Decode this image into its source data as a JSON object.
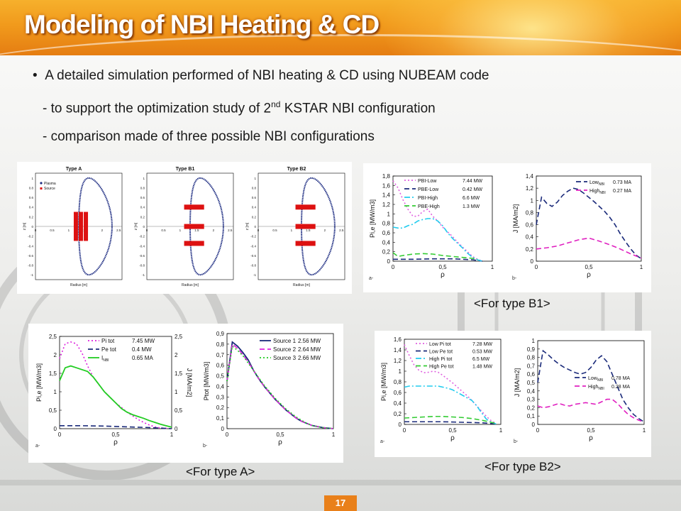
{
  "slide": {
    "title": "Modeling of NBI Heating & CD",
    "bullet": "A detailed simulation performed of NBI heating & CD using NUBEAM code",
    "sub1_pre": "- to support the optimization study of 2",
    "sub1_sup": "nd",
    "sub1_post": " KSTAR NBI configuration",
    "sub2": "- comparison made of three possible NBI configurations",
    "page_number": "17",
    "caption_b1": "<For type B1>",
    "caption_a": "<For type A>",
    "caption_b2": "<For type B2>"
  },
  "chart_data": [
    {
      "type": "scatter",
      "panels": [
        {
          "label": "Type A",
          "plasma_series": "Plasma",
          "source_series": "Source",
          "source_layout": "vertical"
        },
        {
          "label": "Type B1",
          "source_layout": "horizontal"
        },
        {
          "label": "Type B2",
          "source_layout": "horizontal"
        }
      ],
      "xlabel": "Radius [m]",
      "ylabel": "z [m]",
      "x_ticks": [
        "0",
        "0.5",
        "1",
        "1.5",
        "2",
        "2.5"
      ],
      "y_ticks": [
        "1",
        "0.8",
        "0.6",
        "0.4",
        "0.2",
        "0",
        "-0.2",
        "-0.4",
        "-0.6",
        "-0.8",
        "-1"
      ],
      "colors": {
        "plasma": "#1b2a80",
        "source": "#dd1111"
      }
    },
    {
      "type": "line",
      "caption": "<For type B1>",
      "a": {
        "panel_tag": "a-",
        "xlabel": "ρ",
        "ylabel": "Pi,e [MW/m3]",
        "ylim": [
          0,
          1.8
        ],
        "y_ticks": [
          "0",
          "0,2",
          "0,4",
          "0,6",
          "0,8",
          "1",
          "1,2",
          "1,4",
          "1,6",
          "1,8"
        ],
        "x_ticks": [
          "0",
          "0,5",
          "1"
        ],
        "series": [
          {
            "name": "PBI-Low",
            "value": "7.44 MW",
            "color": "#e060e0",
            "style": "dotted",
            "x": [
              0,
              0.05,
              0.1,
              0.15,
              0.2,
              0.25,
              0.3,
              0.35,
              0.4,
              0.45,
              0.5,
              0.55,
              0.6,
              0.65,
              0.7,
              0.75,
              0.8,
              0.85,
              0.9
            ],
            "y": [
              1.7,
              1.55,
              1.3,
              1.1,
              0.95,
              0.95,
              1.05,
              1.1,
              0.95,
              0.85,
              0.72,
              0.62,
              0.52,
              0.4,
              0.3,
              0.2,
              0.1,
              0.04,
              0
            ]
          },
          {
            "name": "PBE-Low",
            "value": "0.42 MW",
            "color": "#1a2a7a",
            "style": "dashed",
            "x": [
              0,
              0.2,
              0.4,
              0.6,
              0.8,
              0.9
            ],
            "y": [
              0.04,
              0.04,
              0.05,
              0.05,
              0.03,
              0
            ]
          },
          {
            "name": "PBI-High",
            "value": "6.6 MW",
            "color": "#22ccee",
            "style": "dashdot",
            "x": [
              0,
              0.05,
              0.1,
              0.15,
              0.2,
              0.25,
              0.3,
              0.35,
              0.4,
              0.45,
              0.5,
              0.55,
              0.6,
              0.65,
              0.7,
              0.75,
              0.8,
              0.85,
              0.9
            ],
            "y": [
              0.72,
              0.7,
              0.7,
              0.75,
              0.78,
              0.85,
              0.88,
              0.9,
              0.9,
              0.85,
              0.75,
              0.6,
              0.48,
              0.38,
              0.28,
              0.17,
              0.08,
              0.03,
              0
            ]
          },
          {
            "name": "PBE-High",
            "value": "1.3 MW",
            "color": "#33cc33",
            "style": "dashed",
            "x": [
              0,
              0.05,
              0.1,
              0.2,
              0.3,
              0.4,
              0.5,
              0.6,
              0.7,
              0.8,
              0.85
            ],
            "y": [
              0.18,
              0.1,
              0.12,
              0.15,
              0.16,
              0.15,
              0.12,
              0.1,
              0.08,
              0.06,
              0.04
            ]
          }
        ]
      },
      "b": {
        "panel_tag": "b-",
        "xlabel": "ρ",
        "ylabel": "J [MA/m2]",
        "ylim": [
          0,
          1.4
        ],
        "y_ticks": [
          "0",
          "0,2",
          "0,4",
          "0,6",
          "0,8",
          "1",
          "1,2",
          "1,4"
        ],
        "x_ticks": [
          "0",
          "0,5",
          "1"
        ],
        "series": [
          {
            "name": "Low",
            "sub": "NBI",
            "value": "0.73 MA",
            "color": "#1a2a7a",
            "style": "dashed",
            "x": [
              0,
              0.05,
              0.1,
              0.15,
              0.2,
              0.25,
              0.3,
              0.35,
              0.4,
              0.45,
              0.5,
              0.55,
              0.6,
              0.65,
              0.7,
              0.75,
              0.8,
              0.85,
              0.9,
              0.95,
              1
            ],
            "y": [
              0.6,
              1.05,
              0.95,
              0.9,
              0.97,
              1.08,
              1.15,
              1.2,
              1.18,
              1.12,
              1.05,
              0.98,
              0.9,
              0.82,
              0.72,
              0.6,
              0.45,
              0.32,
              0.2,
              0.1,
              0.04
            ]
          },
          {
            "name": "High",
            "sub": "NBI",
            "value": "0.27 MA",
            "color": "#e020c0",
            "style": "dashed",
            "x": [
              0,
              0.1,
              0.2,
              0.3,
              0.4,
              0.5,
              0.6,
              0.7,
              0.8,
              0.9,
              1
            ],
            "y": [
              0.2,
              0.22,
              0.25,
              0.3,
              0.35,
              0.38,
              0.33,
              0.27,
              0.2,
              0.12,
              0.05
            ]
          }
        ]
      }
    },
    {
      "type": "line",
      "caption": "<For type A>",
      "a": {
        "panel_tag": "a-",
        "xlabel": "ρ",
        "ylabel": "Pi,e [MW/m3]",
        "ylabel_right": "J [MA/m2]",
        "ylim": [
          0,
          2.5
        ],
        "y_ticks": [
          "0",
          "0,5",
          "1",
          "1,5",
          "2",
          "2,5"
        ],
        "y_ticks_right": [
          "0",
          "0,5",
          "1",
          "1,5",
          "2",
          "2,5"
        ],
        "x_ticks": [
          "0",
          "0,5",
          "1"
        ],
        "series": [
          {
            "name": "Pi tot",
            "value": "7.45 MW",
            "color": "#dd22dd",
            "style": "dotted",
            "x": [
              0,
              0.05,
              0.1,
              0.15,
              0.2,
              0.25,
              0.3,
              0.35,
              0.4,
              0.45,
              0.5,
              0.55,
              0.6,
              0.65,
              0.7,
              0.75,
              0.8,
              0.85,
              0.9,
              0.95,
              1
            ],
            "y": [
              1.9,
              2.3,
              2.35,
              2.3,
              2.05,
              1.7,
              1.4,
              1.2,
              1.0,
              0.85,
              0.7,
              0.58,
              0.45,
              0.35,
              0.25,
              0.17,
              0.1,
              0.05,
              0.02,
              0.01,
              0
            ]
          },
          {
            "name": "Pe tot",
            "value": "0.4 MW",
            "color": "#1a2a7a",
            "style": "dashed",
            "x": [
              0,
              0.2,
              0.4,
              0.6,
              0.8,
              1
            ],
            "y": [
              0.08,
              0.08,
              0.07,
              0.05,
              0.03,
              0
            ]
          },
          {
            "name": "I",
            "sub": "NBI",
            "value": "0.65 MA",
            "color": "#22cc22",
            "style": "solid",
            "x": [
              0,
              0.05,
              0.1,
              0.15,
              0.2,
              0.25,
              0.3,
              0.35,
              0.4,
              0.45,
              0.5,
              0.55,
              0.6,
              0.65,
              0.7,
              0.75,
              0.8,
              0.85,
              0.9,
              0.95,
              1
            ],
            "y": [
              1.3,
              1.65,
              1.7,
              1.65,
              1.6,
              1.55,
              1.4,
              1.2,
              1.0,
              0.85,
              0.7,
              0.55,
              0.45,
              0.38,
              0.33,
              0.28,
              0.22,
              0.17,
              0.12,
              0.08,
              0.04
            ]
          }
        ]
      },
      "b": {
        "panel_tag": "b-",
        "xlabel": "ρ",
        "ylabel": "Ptot [MW/m3]",
        "ylim": [
          0,
          0.9
        ],
        "y_ticks": [
          "0",
          "0,1",
          "0,2",
          "0,3",
          "0,4",
          "0,5",
          "0,6",
          "0,7",
          "0,8",
          "0,9"
        ],
        "x_ticks": [
          "0",
          "0,5",
          "1"
        ],
        "series": [
          {
            "name": "Source 1",
            "value": "2.56 MW",
            "color": "#1a2a7a",
            "style": "solid",
            "x": [
              0,
              0.05,
              0.1,
              0.15,
              0.2,
              0.25,
              0.3,
              0.35,
              0.4,
              0.45,
              0.5,
              0.55,
              0.6,
              0.65,
              0.7,
              0.75,
              0.8,
              0.85,
              0.9,
              0.95,
              1
            ],
            "y": [
              0.45,
              0.82,
              0.78,
              0.72,
              0.65,
              0.55,
              0.47,
              0.4,
              0.34,
              0.28,
              0.23,
              0.18,
              0.14,
              0.1,
              0.07,
              0.05,
              0.03,
              0.02,
              0.01,
              0.005,
              0
            ]
          },
          {
            "name": "Source 2",
            "value": "2.64 MW",
            "color": "#dd22dd",
            "style": "dashed",
            "x": [
              0,
              0.05,
              0.1,
              0.15,
              0.2,
              0.25,
              0.3,
              0.35,
              0.4,
              0.45,
              0.5,
              0.55,
              0.6,
              0.65,
              0.7,
              0.75,
              0.8,
              0.85,
              0.9,
              0.95,
              1
            ],
            "y": [
              0.45,
              0.8,
              0.76,
              0.7,
              0.63,
              0.55,
              0.47,
              0.4,
              0.34,
              0.28,
              0.23,
              0.18,
              0.14,
              0.1,
              0.07,
              0.05,
              0.03,
              0.02,
              0.01,
              0.005,
              0
            ]
          },
          {
            "name": "Source 3",
            "value": "2.66 MW",
            "color": "#22cc22",
            "style": "dotted",
            "x": [
              0,
              0.05,
              0.1,
              0.15,
              0.2,
              0.25,
              0.3,
              0.35,
              0.4,
              0.45,
              0.5,
              0.55,
              0.6,
              0.65,
              0.7,
              0.75,
              0.8,
              0.85,
              0.9,
              0.95,
              1
            ],
            "y": [
              0.45,
              0.78,
              0.74,
              0.69,
              0.62,
              0.55,
              0.48,
              0.41,
              0.35,
              0.29,
              0.24,
              0.19,
              0.15,
              0.11,
              0.08,
              0.05,
              0.03,
              0.02,
              0.01,
              0.005,
              0
            ]
          }
        ]
      }
    },
    {
      "type": "line",
      "caption": "<For type B2>",
      "a": {
        "panel_tag": "a-",
        "xlabel": "ρ",
        "ylabel": "Pi,e [MW/m3]",
        "ylim": [
          0,
          1.6
        ],
        "y_ticks": [
          "0",
          "0,2",
          "0,4",
          "0,6",
          "0,8",
          "1",
          "1,2",
          "1,4",
          "1,6"
        ],
        "x_ticks": [
          "0",
          "0,5",
          "1"
        ],
        "series": [
          {
            "name": "Low Pi tot",
            "value": "7.28 MW",
            "color": "#e060e0",
            "style": "dotted",
            "x": [
              0,
              0.05,
              0.1,
              0.15,
              0.2,
              0.25,
              0.3,
              0.35,
              0.4,
              0.45,
              0.5,
              0.55,
              0.6,
              0.65,
              0.7,
              0.75,
              0.8,
              0.85,
              0.9,
              0.95
            ],
            "y": [
              1.5,
              1.3,
              1.12,
              1.02,
              0.97,
              0.98,
              1.0,
              0.98,
              0.92,
              0.85,
              0.78,
              0.7,
              0.62,
              0.54,
              0.45,
              0.35,
              0.25,
              0.15,
              0.07,
              0.02
            ]
          },
          {
            "name": "Low Pe tot",
            "value": "0.53 MW",
            "color": "#1a2a7a",
            "style": "dashed",
            "x": [
              0,
              0.2,
              0.4,
              0.6,
              0.8,
              0.95
            ],
            "y": [
              0.05,
              0.05,
              0.05,
              0.04,
              0.03,
              0.01
            ]
          },
          {
            "name": "High Pi tot",
            "value": "6.5 MW",
            "color": "#22ccee",
            "style": "dashdot",
            "x": [
              0,
              0.05,
              0.1,
              0.15,
              0.2,
              0.25,
              0.3,
              0.35,
              0.4,
              0.45,
              0.5,
              0.55,
              0.6,
              0.65,
              0.7,
              0.75,
              0.8,
              0.85,
              0.9,
              0.95
            ],
            "y": [
              0.7,
              0.72,
              0.72,
              0.72,
              0.72,
              0.72,
              0.72,
              0.72,
              0.7,
              0.68,
              0.65,
              0.6,
              0.55,
              0.5,
              0.45,
              0.35,
              0.22,
              0.1,
              0.04,
              0.01
            ]
          },
          {
            "name": "High Pe tot",
            "value": "1.48 MW",
            "color": "#33cc33",
            "style": "dashed",
            "x": [
              0,
              0.1,
              0.2,
              0.3,
              0.4,
              0.5,
              0.6,
              0.7,
              0.8,
              0.9,
              0.95
            ],
            "y": [
              0.12,
              0.13,
              0.14,
              0.15,
              0.15,
              0.14,
              0.13,
              0.11,
              0.08,
              0.04,
              0.02
            ]
          }
        ]
      },
      "b": {
        "panel_tag": "b-",
        "xlabel": "ρ",
        "ylabel": "J [MA/m2]",
        "ylim": [
          0,
          1.0
        ],
        "y_ticks": [
          "0",
          "0,1",
          "0,2",
          "0,3",
          "0,4",
          "0,5",
          "0,6",
          "0,7",
          "0,8",
          "0,9",
          "1"
        ],
        "x_ticks": [
          "0",
          "0,5",
          "1"
        ],
        "series": [
          {
            "name": "Low",
            "sub": "NBI",
            "value": "0.78 MA",
            "color": "#1a2a7a",
            "style": "dashed",
            "x": [
              0,
              0.05,
              0.1,
              0.15,
              0.2,
              0.25,
              0.3,
              0.35,
              0.4,
              0.45,
              0.5,
              0.55,
              0.6,
              0.65,
              0.7,
              0.75,
              0.8,
              0.85,
              0.9,
              0.95,
              1
            ],
            "y": [
              0.5,
              0.88,
              0.83,
              0.77,
              0.72,
              0.68,
              0.65,
              0.62,
              0.6,
              0.62,
              0.68,
              0.77,
              0.82,
              0.75,
              0.6,
              0.45,
              0.3,
              0.2,
              0.12,
              0.07,
              0.03
            ]
          },
          {
            "name": "High",
            "sub": "NBI",
            "value": "0.28 MA",
            "color": "#e020c0",
            "style": "dashed",
            "x": [
              0,
              0.05,
              0.1,
              0.15,
              0.2,
              0.25,
              0.3,
              0.35,
              0.4,
              0.45,
              0.5,
              0.55,
              0.6,
              0.65,
              0.7,
              0.75,
              0.8,
              0.85,
              0.9,
              0.95,
              1
            ],
            "y": [
              0.22,
              0.2,
              0.21,
              0.23,
              0.25,
              0.23,
              0.22,
              0.24,
              0.25,
              0.26,
              0.25,
              0.24,
              0.27,
              0.3,
              0.3,
              0.25,
              0.18,
              0.12,
              0.08,
              0.05,
              0.03
            ]
          }
        ]
      }
    }
  ]
}
